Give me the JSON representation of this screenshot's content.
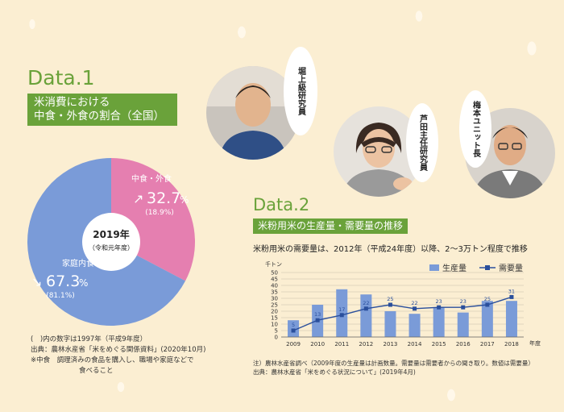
{
  "data1": {
    "label": "Data.1",
    "title_line1": "米消費における",
    "title_line2": "中食・外食の割合（全国）",
    "center_year": "2019年",
    "center_era": "（令和元年度）",
    "slices": [
      {
        "name": "中食・外食",
        "value": 32.7,
        "prev": "(18.9%)",
        "display": "32.7",
        "unit": "%",
        "color": "#e57fb0"
      },
      {
        "name": "家庭内食",
        "value": 67.3,
        "prev": "(81.1%)",
        "display": "67.3",
        "unit": "%",
        "color": "#7a9bd8"
      }
    ],
    "notes": [
      "(　)内の数字は1997年（平成9年度）",
      "出典：農林水産省「米をめぐる関係資料」(2020年10月)",
      "※中食　調理済みの食品を購入し、職場や家庭などで",
      "食べること"
    ]
  },
  "people": [
    {
      "name": "堀上級研究員"
    },
    {
      "name": "芦田主任研究員"
    },
    {
      "name": "梅本ユニット長"
    }
  ],
  "data2": {
    "label": "Data.2",
    "title": "米粉用米の生産量・需要量の推移",
    "subtitle": "米粉用米の需要量は、2012年（平成24年度）以降、2〜3万トン程度で推移",
    "notes": [
      "注）農林水産省調べ（2009年度の生産量は計画数量。需要量は需要者からの聞き取り。数値は需要量）",
      "出典：農林水産省「米をめぐる状況について」(2019年4月)"
    ]
  },
  "chart_data": {
    "type": "bar",
    "categories": [
      "2009",
      "2010",
      "2011",
      "2012",
      "2013",
      "2014",
      "2015",
      "2016",
      "2017",
      "2018"
    ],
    "series": [
      {
        "name": "生産量",
        "type": "bar",
        "values": [
          13,
          25,
          37,
          33,
          20,
          18,
          23,
          19,
          28,
          28
        ],
        "color": "#7a9bd8"
      },
      {
        "name": "需要量",
        "type": "line",
        "values": [
          5,
          13,
          17,
          22,
          25,
          22,
          23,
          23,
          25,
          31
        ],
        "color": "#2a4f9c"
      }
    ],
    "ylabel": "千トン",
    "xlabel": "年度",
    "ylim": [
      0,
      50
    ],
    "yticks": [
      0,
      5,
      10,
      15,
      20,
      25,
      30,
      35,
      40,
      45,
      50
    ],
    "grid": true,
    "legend": "top-right"
  }
}
